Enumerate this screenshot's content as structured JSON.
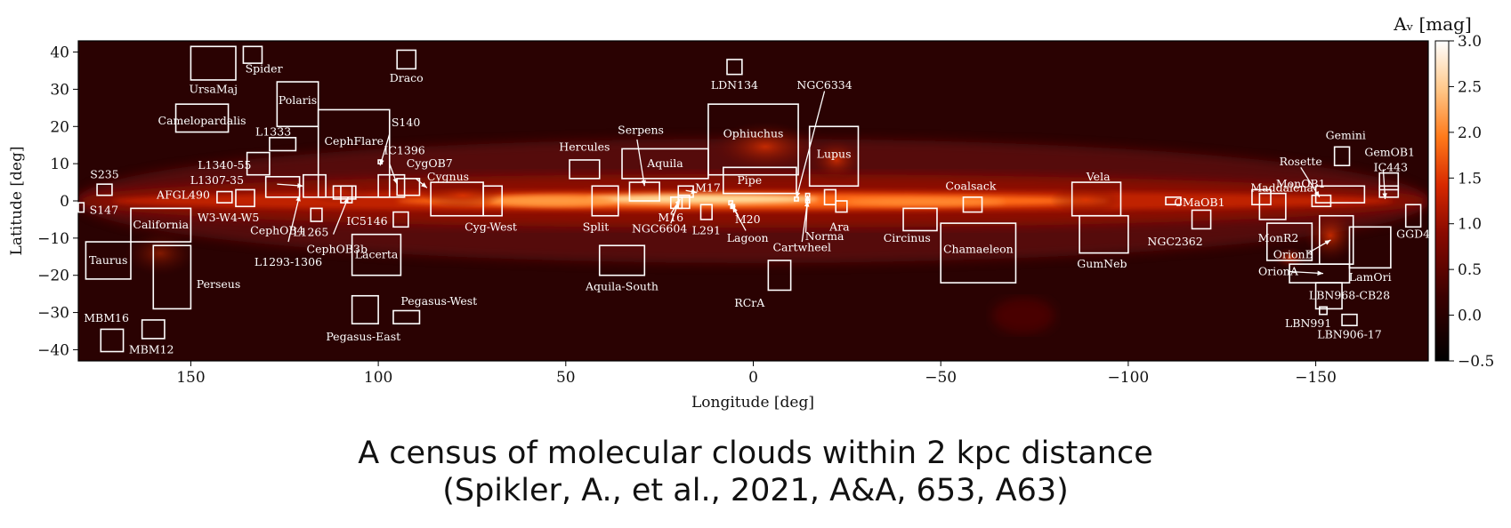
{
  "chart_data": {
    "type": "heatmap",
    "title": "",
    "xlabel": "Longitude [deg]",
    "ylabel": "Latitude [deg]",
    "xlim": [
      180,
      -180
    ],
    "ylim": [
      -43,
      43
    ],
    "xticks": [
      150,
      100,
      50,
      0,
      -50,
      -100,
      -150
    ],
    "yticks": [
      40,
      30,
      20,
      10,
      0,
      -10,
      -20,
      -30,
      -40
    ],
    "colorbar": {
      "label": "Aᵥ [mag]",
      "range": [
        -0.5,
        3.0
      ],
      "ticks": [
        3.0,
        2.5,
        2.0,
        1.5,
        1.0,
        0.5,
        0.0,
        -0.5
      ],
      "colormap": [
        "#000000",
        "#3a0000",
        "#8a0a00",
        "#d82a00",
        "#ff7a1a",
        "#ffc88a",
        "#ffffff"
      ]
    },
    "regions": [
      {
        "name": "UrsaMaj",
        "l": [
          150,
          138
        ],
        "b": [
          32.5,
          41.5
        ],
        "lx": 144,
        "ly": 30,
        "la": "middle"
      },
      {
        "name": "Spider",
        "l": [
          136,
          131
        ],
        "b": [
          37,
          41.5
        ],
        "lx": 130.5,
        "ly": 35.5,
        "la": "middle"
      },
      {
        "name": "Draco",
        "l": [
          95,
          90
        ],
        "b": [
          35.5,
          40.5
        ],
        "lx": 92.5,
        "ly": 33,
        "la": "middle"
      },
      {
        "name": "Polaris",
        "l": [
          127,
          116
        ],
        "b": [
          20,
          32
        ],
        "lx": 121.5,
        "ly": 27,
        "la": "middle"
      },
      {
        "name": "Camelopardalis",
        "l": [
          154,
          140
        ],
        "b": [
          18.5,
          26
        ],
        "lx": 147,
        "ly": 21.5,
        "la": "middle"
      },
      {
        "name": "L1333",
        "l": [
          129,
          122
        ],
        "b": [
          13.5,
          17
        ],
        "lx": 128,
        "ly": 18.5,
        "la": "middle"
      },
      {
        "name": "CephFlare",
        "l": [
          116,
          97
        ],
        "b": [
          1,
          24.5
        ],
        "lx": 106.5,
        "ly": 16,
        "la": "middle"
      },
      {
        "name": "S140",
        "l": [
          100,
          99
        ],
        "b": [
          10,
          11
        ],
        "lx": 96.5,
        "ly": 21,
        "la": "start"
      },
      {
        "name": "IC1396",
        "l": [
          100,
          93
        ],
        "b": [
          1,
          7
        ],
        "lx": 98.5,
        "ly": 13.5,
        "la": "start"
      },
      {
        "name": "CygOB7",
        "l": [
          95,
          89
        ],
        "b": [
          1.5,
          6
        ],
        "lx": 92.5,
        "ly": 10,
        "la": "start"
      },
      {
        "name": "Cygnus",
        "l": [
          86,
          72
        ],
        "b": [
          -4,
          5
        ],
        "lx": 87,
        "ly": 6.5,
        "la": "start"
      },
      {
        "name": "Cyg-West",
        "l": [
          72,
          67
        ],
        "b": [
          -4,
          4
        ],
        "lx": 70,
        "ly": -7,
        "la": "middle"
      },
      {
        "name": "L1340-55",
        "l": [
          135,
          129
        ],
        "b": [
          7,
          13
        ],
        "lx": 141,
        "ly": 9.5,
        "la": "middle"
      },
      {
        "name": "L1307-35",
        "l": [
          130,
          121
        ],
        "b": [
          1,
          6.5
        ],
        "lx": 143,
        "ly": 5.5,
        "la": "middle"
      },
      {
        "name": "AFGL490",
        "l": [
          143,
          139
        ],
        "b": [
          -0.5,
          2.5
        ],
        "lx": 152,
        "ly": 1.5,
        "la": "middle"
      },
      {
        "name": "W3-W4-W5",
        "l": [
          138,
          133
        ],
        "b": [
          -1.5,
          3
        ],
        "lx": 140,
        "ly": -4.5,
        "la": "middle"
      },
      {
        "name": "CephOB4",
        "l": [
          120,
          114
        ],
        "b": [
          1,
          7
        ],
        "lx": 127,
        "ly": -8,
        "la": "middle"
      },
      {
        "name": "L1265",
        "l": [
          118,
          115
        ],
        "b": [
          -5.5,
          -2
        ],
        "lx": 118,
        "ly": -8.5,
        "la": "middle"
      },
      {
        "name": "L1293-1306",
        "l": [
          110,
          107
        ],
        "b": [
          -0.5,
          4
        ],
        "lx": 124,
        "ly": -16.5,
        "la": "middle"
      },
      {
        "name": "CephOB3b",
        "l": [
          112,
          106
        ],
        "b": [
          0.5,
          4
        ],
        "lx": 111,
        "ly": -13,
        "la": "middle"
      },
      {
        "name": "IC5146",
        "l": [
          96,
          92
        ],
        "b": [
          -7,
          -3
        ],
        "lx": 97.5,
        "ly": -5.5,
        "la": "end"
      },
      {
        "name": "Lacerta",
        "l": [
          107,
          94
        ],
        "b": [
          -20,
          -9
        ],
        "lx": 100.5,
        "ly": -14.5,
        "la": "middle"
      },
      {
        "name": "Pegasus-West",
        "l": [
          96,
          89
        ],
        "b": [
          -33,
          -29.5
        ],
        "lx": 94,
        "ly": -27,
        "la": "start"
      },
      {
        "name": "Pegasus-East",
        "l": [
          107,
          100
        ],
        "b": [
          -33,
          -25.5
        ],
        "lx": 104,
        "ly": -36.5,
        "la": "middle"
      },
      {
        "name": "S235",
        "l": [
          175,
          171
        ],
        "b": [
          1.5,
          4.5
        ],
        "lx": 173,
        "ly": 7,
        "la": "middle"
      },
      {
        "name": "S147",
        "l": [
          180,
          178.5
        ],
        "b": [
          -3,
          -0.5
        ],
        "lx": 177,
        "ly": -2.5,
        "la": "start"
      },
      {
        "name": "California",
        "l": [
          166,
          150
        ],
        "b": [
          -11,
          -2
        ],
        "lx": 158,
        "ly": -6.5,
        "la": "middle"
      },
      {
        "name": "Taurus",
        "l": [
          178,
          166
        ],
        "b": [
          -21,
          -11
        ],
        "lx": 172,
        "ly": -16,
        "la": "middle"
      },
      {
        "name": "Perseus",
        "l": [
          160,
          150
        ],
        "b": [
          -29,
          -12
        ],
        "lx": 148.5,
        "ly": -22.5,
        "la": "start"
      },
      {
        "name": "MBM16",
        "l": [
          174,
          168
        ],
        "b": [
          -40.5,
          -34.5
        ],
        "lx": 172.5,
        "ly": -31.5,
        "la": "middle"
      },
      {
        "name": "MBM12",
        "l": [
          163,
          157
        ],
        "b": [
          -37,
          -32
        ],
        "lx": 160.5,
        "ly": -40,
        "la": "middle"
      },
      {
        "name": "Hercules",
        "l": [
          49,
          41
        ],
        "b": [
          6,
          11
        ],
        "lx": 45,
        "ly": 14.5,
        "la": "middle"
      },
      {
        "name": "Serpens",
        "l": [
          33,
          25
        ],
        "b": [
          0,
          5
        ],
        "lx": 30,
        "ly": 19,
        "la": "middle"
      },
      {
        "name": "Aquila",
        "l": [
          35,
          12
        ],
        "b": [
          6,
          14
        ],
        "lx": 23.5,
        "ly": 10,
        "la": "middle"
      },
      {
        "name": "Split",
        "l": [
          43,
          36
        ],
        "b": [
          -4,
          4
        ],
        "lx": 42,
        "ly": -7,
        "la": "middle"
      },
      {
        "name": "M17",
        "l": [
          20,
          16
        ],
        "b": [
          1,
          4
        ],
        "lx": 15.5,
        "ly": 3.5,
        "la": "start"
      },
      {
        "name": "M16",
        "l": [
          20,
          17
        ],
        "b": [
          -2,
          1.5
        ],
        "lx": 22,
        "ly": -4.5,
        "la": "middle"
      },
      {
        "name": "NGC6604",
        "l": [
          22,
          19
        ],
        "b": [
          -2,
          1
        ],
        "lx": 25,
        "ly": -7.5,
        "la": "middle"
      },
      {
        "name": "L291",
        "l": [
          14,
          11
        ],
        "b": [
          -5,
          -1
        ],
        "lx": 12.5,
        "ly": -8,
        "la": "middle"
      },
      {
        "name": "LDN134",
        "l": [
          7,
          3
        ],
        "b": [
          34,
          38
        ],
        "lx": 5,
        "ly": 31,
        "la": "middle"
      },
      {
        "name": "Ophiuchus",
        "l": [
          12,
          -12
        ],
        "b": [
          7,
          26
        ],
        "lx": 0,
        "ly": 18,
        "la": "middle"
      },
      {
        "name": "Pipe",
        "l": [
          8,
          -11.5
        ],
        "b": [
          2,
          9
        ],
        "lx": 1,
        "ly": 5.5,
        "la": "middle"
      },
      {
        "name": "M20",
        "l": [
          6.5,
          5.5
        ],
        "b": [
          -1,
          0
        ],
        "lx": 1.5,
        "ly": -5,
        "la": "middle"
      },
      {
        "name": "Lagoon",
        "l": [
          6,
          5
        ],
        "b": [
          -2,
          -1
        ],
        "lx": 1.5,
        "ly": -10,
        "la": "middle"
      },
      {
        "name": "NGC6334",
        "l": [
          -11,
          -12
        ],
        "b": [
          0,
          1
        ],
        "lx": -19,
        "ly": 31,
        "la": "middle"
      },
      {
        "name": "Cartwheel",
        "l": [
          -14,
          -15
        ],
        "b": [
          -0.5,
          0.5
        ],
        "lx": -13,
        "ly": -12.5,
        "la": "middle"
      },
      {
        "name": "Norma",
        "l": [
          -14,
          -15
        ],
        "b": [
          1,
          2
        ],
        "lx": -19,
        "ly": -9.5,
        "la": "middle"
      },
      {
        "name": "Lupus",
        "l": [
          -15,
          -28
        ],
        "b": [
          4,
          20
        ],
        "lx": -21.5,
        "ly": 12.5,
        "la": "middle"
      },
      {
        "name": "Ara",
        "l": [
          -19,
          -22
        ],
        "b": [
          -1,
          3
        ],
        "lx": -23,
        "ly": -7,
        "la": "middle"
      },
      {
        "name": "Ara",
        "l": [
          -22,
          -25
        ],
        "b": [
          -3,
          0
        ],
        "lx": -23,
        "ly": -7,
        "la": "middle",
        "hide": true
      },
      {
        "name": "RCrA",
        "l": [
          -4,
          -10
        ],
        "b": [
          -24,
          -16
        ],
        "lx": 1,
        "ly": -27.5,
        "la": "middle"
      },
      {
        "name": "Aquila-South",
        "l": [
          41,
          29
        ],
        "b": [
          -20,
          -12
        ],
        "lx": 35,
        "ly": -23,
        "la": "middle"
      },
      {
        "name": "Circinus",
        "l": [
          -40,
          -49
        ],
        "b": [
          -8,
          -2
        ],
        "lx": -41,
        "ly": -10,
        "la": "middle"
      },
      {
        "name": "Coalsack",
        "l": [
          -56,
          -61
        ],
        "b": [
          -3,
          1
        ],
        "lx": -58,
        "ly": 4,
        "la": "middle"
      },
      {
        "name": "Chamaeleon",
        "l": [
          -50,
          -70
        ],
        "b": [
          -22,
          -6
        ],
        "lx": -60,
        "ly": -13,
        "la": "middle"
      },
      {
        "name": "Vela",
        "l": [
          -85,
          -98
        ],
        "b": [
          -4,
          5
        ],
        "lx": -92,
        "ly": 6.5,
        "la": "middle"
      },
      {
        "name": "GumNeb",
        "l": [
          -87,
          -100
        ],
        "b": [
          -14,
          -4
        ],
        "lx": -93,
        "ly": -17,
        "la": "middle"
      },
      {
        "name": "CMaOB1",
        "l": [
          -117,
          -122
        ],
        "b": [
          -7.5,
          -2.5
        ],
        "lx": -119,
        "ly": -0.5,
        "la": "middle"
      },
      {
        "name": "NGC2362",
        "l": [
          -110,
          -114
        ],
        "b": [
          -1,
          1
        ],
        "lx": -112.5,
        "ly": -11,
        "la": "middle"
      },
      {
        "name": "Maddalena",
        "l": [
          -133,
          -138
        ],
        "b": [
          -1,
          3
        ],
        "lx": -141,
        "ly": 3.5,
        "la": "middle"
      },
      {
        "name": "MonR2",
        "l": [
          -135,
          -142
        ],
        "b": [
          -5,
          2
        ],
        "lx": -140,
        "ly": -10,
        "la": "middle"
      },
      {
        "name": "MonR2box",
        "l": [
          -137,
          -149
        ],
        "b": [
          -16,
          -6
        ],
        "lx": -140,
        "ly": -10,
        "la": "middle",
        "hide": true
      },
      {
        "name": "MonOB1",
        "l": [
          -150,
          -163
        ],
        "b": [
          -0.5,
          4
        ],
        "lx": -146,
        "ly": 4.5,
        "la": "middle"
      },
      {
        "name": "Rosette",
        "l": [
          -149,
          -154
        ],
        "b": [
          -1.5,
          1.5
        ],
        "lx": -146,
        "ly": 10.5,
        "la": "middle"
      },
      {
        "name": "OrionB",
        "l": [
          -151,
          -160
        ],
        "b": [
          -17,
          -4
        ],
        "lx": -144,
        "ly": -14.5,
        "la": "middle"
      },
      {
        "name": "OrionA",
        "l": [
          -143,
          -159
        ],
        "b": [
          -22,
          -17
        ],
        "lx": -140,
        "ly": -19,
        "la": "middle"
      },
      {
        "name": "LamOri",
        "l": [
          -159,
          -170
        ],
        "b": [
          -18,
          -7
        ],
        "lx": -164.5,
        "ly": -20.5,
        "la": "middle"
      },
      {
        "name": "LBN968-CB28",
        "l": [
          -150,
          -157
        ],
        "b": [
          -29,
          -22
        ],
        "lx": -159,
        "ly": -25.5,
        "la": "middle"
      },
      {
        "name": "LBN991",
        "l": [
          -151,
          -153
        ],
        "b": [
          -30.5,
          -28.5
        ],
        "lx": -148,
        "ly": -33,
        "la": "middle"
      },
      {
        "name": "LBN906-17",
        "l": [
          -157,
          -161
        ],
        "b": [
          -33.5,
          -30.5
        ],
        "lx": -159,
        "ly": -36,
        "la": "middle"
      },
      {
        "name": "Gemini",
        "l": [
          -155,
          -159
        ],
        "b": [
          9.5,
          14.5
        ],
        "lx": -158,
        "ly": 17.5,
        "la": "middle"
      },
      {
        "name": "GemOB1",
        "l": [
          -167,
          -172
        ],
        "b": [
          3,
          7.5
        ],
        "lx": -163,
        "ly": 13,
        "la": "start"
      },
      {
        "name": "IC443",
        "l": [
          -167,
          -172
        ],
        "b": [
          1,
          4
        ],
        "lx": -170,
        "ly": 9,
        "la": "middle"
      },
      {
        "name": "GGD4",
        "l": [
          -174,
          -178
        ],
        "b": [
          -7,
          -1
        ],
        "lx": -176,
        "ly": -9,
        "la": "middle"
      }
    ],
    "arrows": [
      {
        "from": [
          127,
          4.5
        ],
        "to": [
          120,
          4.0
        ]
      },
      {
        "from": [
          124,
          -11
        ],
        "to": [
          121,
          1.5
        ]
      },
      {
        "from": [
          112,
          -9
        ],
        "to": [
          108,
          1
        ]
      },
      {
        "from": [
          97,
          18
        ],
        "to": [
          99.5,
          9.5
        ]
      },
      {
        "from": [
          97,
          10
        ],
        "to": [
          95,
          4.5
        ]
      },
      {
        "from": [
          90,
          6
        ],
        "to": [
          87,
          3.5
        ]
      },
      {
        "from": [
          31,
          16.5
        ],
        "to": [
          29,
          4
        ]
      },
      {
        "from": [
          18,
          2.8
        ],
        "to": [
          15,
          2.2
        ]
      },
      {
        "from": [
          22,
          -3.5
        ],
        "to": [
          19.5,
          0.5
        ]
      },
      {
        "from": [
          22,
          -6
        ],
        "to": [
          20,
          -0.5
        ]
      },
      {
        "from": [
          4,
          -4
        ],
        "to": [
          6,
          -0.5
        ]
      },
      {
        "from": [
          2,
          -8
        ],
        "to": [
          5.5,
          -1.5
        ]
      },
      {
        "from": [
          -19,
          29.5
        ],
        "to": [
          -11.5,
          0.8
        ]
      },
      {
        "from": [
          -14,
          -8.5
        ],
        "to": [
          -14.5,
          1.5
        ]
      },
      {
        "from": [
          -13,
          -11
        ],
        "to": [
          -14.5,
          0
        ]
      },
      {
        "from": [
          -148,
          -14
        ],
        "to": [
          -154,
          -10.5
        ]
      },
      {
        "from": [
          -143,
          -19
        ],
        "to": [
          -152,
          -19.5
        ]
      },
      {
        "from": [
          -146,
          9
        ],
        "to": [
          -151,
          1
        ]
      },
      {
        "from": [
          -168,
          8.5
        ],
        "to": [
          -168.5,
          0.5
        ]
      }
    ]
  },
  "caption": {
    "line1": "A census of molecular clouds within 2 kpc distance",
    "line2": "(Spikler, A., et al., 2021, A&A, 653, A63)"
  }
}
